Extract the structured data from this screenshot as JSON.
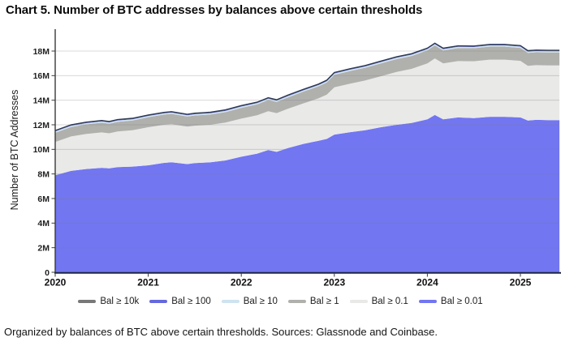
{
  "title": "Chart 5. Number of BTC addresses by balances above certain thresholds",
  "caption": "Organized by balances of BTC above certain thresholds. Sources: Glassnode and Coinbase.",
  "chart_data": {
    "type": "area",
    "stacked": true,
    "title": "Chart 5. Number of BTC addresses by balances above certain thresholds",
    "xlabel": "",
    "ylabel": "Number of BTC Addresses",
    "grid": "horizontal",
    "legend_position": "bottom",
    "xlim_years": [
      2020,
      2025.42
    ],
    "ylim_m": [
      0,
      19.6
    ],
    "x_ticks": {
      "values": [
        2020,
        2021,
        2022,
        2023,
        2024,
        2025
      ],
      "labels": [
        "2020",
        "2021",
        "2022",
        "2023",
        "2024",
        "2025"
      ]
    },
    "y_ticks": {
      "values_m": [
        0,
        2,
        4,
        6,
        8,
        10,
        12,
        14,
        16,
        18
      ],
      "labels": [
        "0",
        "2M",
        "4M",
        "6M",
        "8M",
        "10M",
        "12M",
        "14M",
        "16M",
        "18M"
      ]
    },
    "units": "millions of addresses",
    "x_years": [
      2020.0,
      2020.17,
      2020.33,
      2020.5,
      2020.58,
      2020.67,
      2020.83,
      2021.0,
      2021.17,
      2021.25,
      2021.42,
      2021.5,
      2021.67,
      2021.83,
      2022.0,
      2022.17,
      2022.29,
      2022.38,
      2022.5,
      2022.67,
      2022.83,
      2022.92,
      2023.0,
      2023.17,
      2023.33,
      2023.5,
      2023.67,
      2023.83,
      2024.0,
      2024.08,
      2024.17,
      2024.33,
      2024.5,
      2024.67,
      2024.83,
      2025.0,
      2025.08,
      2025.17,
      2025.3,
      2025.42
    ],
    "series": [
      {
        "key": "bal-001",
        "label": "Bal ≥ 0.01",
        "color": "#7276f0",
        "cumulative_top_m": [
          7.9,
          8.25,
          8.4,
          8.5,
          8.45,
          8.55,
          8.6,
          8.7,
          8.9,
          8.95,
          8.8,
          8.88,
          8.95,
          9.1,
          9.4,
          9.65,
          9.95,
          9.8,
          10.1,
          10.45,
          10.7,
          10.85,
          11.2,
          11.4,
          11.55,
          11.8,
          12.0,
          12.15,
          12.45,
          12.8,
          12.45,
          12.6,
          12.55,
          12.65,
          12.65,
          12.6,
          12.35,
          12.4,
          12.38,
          12.38
        ]
      },
      {
        "key": "bal-01",
        "label": "Bal ≥ 0.1",
        "color": "#e9e9e7",
        "cumulative_top_m": [
          10.6,
          11.05,
          11.25,
          11.38,
          11.31,
          11.45,
          11.55,
          11.8,
          12.0,
          12.05,
          11.85,
          11.93,
          12.0,
          12.18,
          12.5,
          12.77,
          13.1,
          12.95,
          13.3,
          13.75,
          14.15,
          14.45,
          15.05,
          15.35,
          15.6,
          15.95,
          16.3,
          16.55,
          17.0,
          17.4,
          17.0,
          17.18,
          17.17,
          17.3,
          17.3,
          17.2,
          16.8,
          16.85,
          16.83,
          16.83
        ]
      },
      {
        "key": "bal-1",
        "label": "Bal ≥ 1",
        "color": "#b0b0ad",
        "cumulative_top_m": [
          11.35,
          11.82,
          12.03,
          12.17,
          12.09,
          12.24,
          12.35,
          12.62,
          12.83,
          12.89,
          12.67,
          12.76,
          12.84,
          13.03,
          13.38,
          13.66,
          14.02,
          13.86,
          14.23,
          14.71,
          15.13,
          15.45,
          16.07,
          16.38,
          16.64,
          17.0,
          17.35,
          17.6,
          18.06,
          18.46,
          18.05,
          18.24,
          18.23,
          18.36,
          18.36,
          18.26,
          17.85,
          17.9,
          17.88,
          17.88
        ]
      },
      {
        "key": "bal-10",
        "label": "Bal ≥ 10",
        "color": "#cfe3f0",
        "approx_thickness_m": 0.1
      },
      {
        "key": "bal-100",
        "label": "Bal ≥ 100",
        "color": "#6569dd",
        "approx_thickness_m": 0.04
      },
      {
        "key": "bal-10k",
        "label": "Bal ≥ 10k",
        "color": "#787878",
        "approx_thickness_m": 0.04
      }
    ],
    "legend_order": [
      "bal-10k",
      "bal-100",
      "bal-10",
      "bal-1",
      "bal-01",
      "bal-001"
    ],
    "top_line_color": "#2c3950",
    "axis_color": "#3a3a3a",
    "x_axis_line_color": "#1c2642",
    "gridline_color": "rgba(125,125,132,0.30)"
  }
}
